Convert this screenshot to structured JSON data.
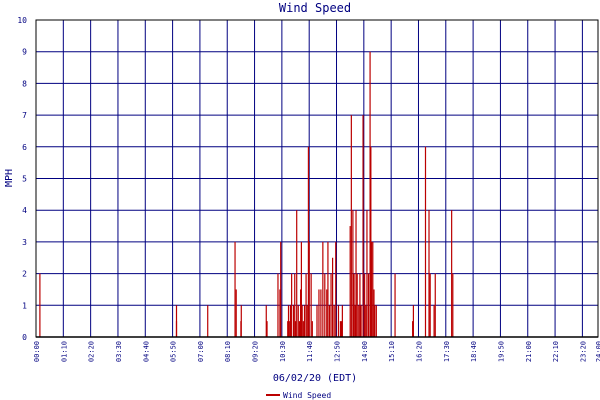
{
  "chart_data": {
    "type": "bar",
    "title": "Wind Speed",
    "xlabel": "06/02/20 (EDT)",
    "ylabel": "MPH",
    "ylim": [
      0,
      10
    ],
    "yticks": [
      "0",
      "1",
      "2",
      "3",
      "4",
      "5",
      "6",
      "7",
      "8",
      "9",
      "10"
    ],
    "xlim": [
      "00:00",
      "24:00"
    ],
    "xticks": [
      "00:00",
      "01:10",
      "02:20",
      "03:30",
      "04:40",
      "05:50",
      "07:00",
      "08:10",
      "09:20",
      "10:30",
      "11:40",
      "12:50",
      "14:00",
      "15:10",
      "16:20",
      "17:30",
      "18:40",
      "19:50",
      "21:00",
      "22:10",
      "23:20",
      "24:00"
    ],
    "grid": true,
    "legend": "bottom-center",
    "colors": {
      "series": "#bb0000",
      "grid": "#000080",
      "text": "#000080",
      "axis": "#000000"
    },
    "series": [
      {
        "name": "Wind Speed",
        "points": [
          [
            "00:10",
            2
          ],
          [
            "06:00",
            0.5
          ],
          [
            "06:00",
            1
          ],
          [
            "07:20",
            1
          ],
          [
            "08:30",
            3
          ],
          [
            "08:33",
            1.5
          ],
          [
            "08:45",
            0.5
          ],
          [
            "08:46",
            1
          ],
          [
            "09:50",
            1
          ],
          [
            "09:52",
            0.5
          ],
          [
            "10:20",
            2
          ],
          [
            "10:25",
            1.5
          ],
          [
            "10:27",
            3
          ],
          [
            "10:45",
            0.5
          ],
          [
            "10:47",
            1
          ],
          [
            "10:50",
            0.5
          ],
          [
            "10:52",
            1
          ],
          [
            "10:55",
            2
          ],
          [
            "11:00",
            1
          ],
          [
            "11:03",
            2
          ],
          [
            "11:05",
            0.5
          ],
          [
            "11:08",
            4
          ],
          [
            "11:12",
            1
          ],
          [
            "11:15",
            0.5
          ],
          [
            "11:18",
            1.5
          ],
          [
            "11:20",
            3
          ],
          [
            "11:22",
            1
          ],
          [
            "11:25",
            0.5
          ],
          [
            "11:28",
            1
          ],
          [
            "11:32",
            2
          ],
          [
            "11:35",
            1
          ],
          [
            "11:38",
            6
          ],
          [
            "11:40",
            3
          ],
          [
            "11:45",
            2
          ],
          [
            "11:48",
            0.5
          ],
          [
            "12:00",
            1
          ],
          [
            "12:05",
            1.5
          ],
          [
            "12:10",
            1.5
          ],
          [
            "12:15",
            3
          ],
          [
            "12:20",
            2
          ],
          [
            "12:25",
            1.5
          ],
          [
            "12:28",
            3
          ],
          [
            "12:32",
            1
          ],
          [
            "12:36",
            2
          ],
          [
            "12:40",
            2.5
          ],
          [
            "12:44",
            1
          ],
          [
            "12:48",
            3
          ],
          [
            "12:55",
            1
          ],
          [
            "13:00",
            0.5
          ],
          [
            "13:03",
            0.5
          ],
          [
            "13:05",
            1
          ],
          [
            "13:25",
            3.5
          ],
          [
            "13:28",
            7
          ],
          [
            "13:32",
            4
          ],
          [
            "13:35",
            2
          ],
          [
            "13:38",
            1
          ],
          [
            "13:40",
            4
          ],
          [
            "13:43",
            2
          ],
          [
            "13:47",
            1
          ],
          [
            "13:50",
            2
          ],
          [
            "13:53",
            1
          ],
          [
            "13:58",
            7
          ],
          [
            "14:02",
            2
          ],
          [
            "14:05",
            1
          ],
          [
            "14:08",
            4
          ],
          [
            "14:12",
            2
          ],
          [
            "14:16",
            9
          ],
          [
            "14:18",
            6
          ],
          [
            "14:20",
            3
          ],
          [
            "14:23",
            3
          ],
          [
            "14:26",
            1.5
          ],
          [
            "14:28",
            1
          ],
          [
            "14:32",
            1
          ],
          [
            "15:20",
            2
          ],
          [
            "16:05",
            0.5
          ],
          [
            "16:07",
            1
          ],
          [
            "16:38",
            6
          ],
          [
            "16:47",
            4
          ],
          [
            "16:50",
            2
          ],
          [
            "17:00",
            1
          ],
          [
            "17:03",
            2
          ],
          [
            "17:45",
            4
          ],
          [
            "17:48",
            2
          ]
        ]
      }
    ]
  }
}
